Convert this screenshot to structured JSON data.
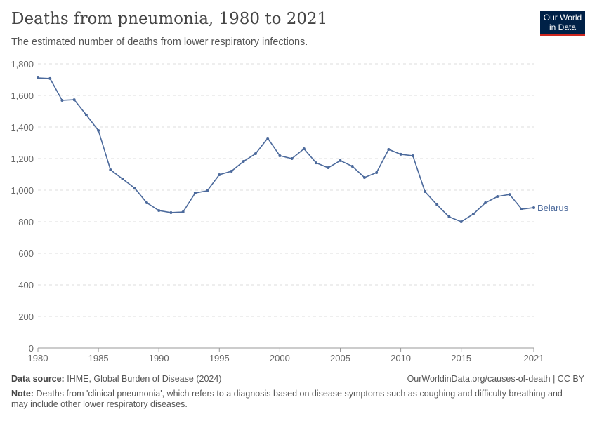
{
  "header": {
    "title": "Deaths from pneumonia, 1980 to 2021",
    "subtitle": "The estimated number of deaths from lower respiratory infections.",
    "logo": "Our World in Data"
  },
  "chart_data": {
    "type": "line",
    "title": "Deaths from pneumonia, 1980 to 2021",
    "subtitle": "The estimated number of deaths from lower respiratory infections.",
    "xlabel": "",
    "ylabel": "",
    "xlim": [
      1980,
      2021
    ],
    "ylim": [
      0,
      1800
    ],
    "x_ticks": [
      "1980",
      "1985",
      "1990",
      "1995",
      "2000",
      "2005",
      "2010",
      "2015",
      "2021"
    ],
    "y_ticks": [
      "0",
      "200",
      "400",
      "600",
      "800",
      "1,000",
      "1,200",
      "1,400",
      "1,600",
      "1,800"
    ],
    "grid": "horizontal dashed",
    "color": "#4c6a9c",
    "series": [
      {
        "name": "Belarus",
        "x": [
          1980,
          1981,
          1982,
          1983,
          1984,
          1985,
          1986,
          1987,
          1988,
          1989,
          1990,
          1991,
          1992,
          1993,
          1994,
          1995,
          1996,
          1997,
          1998,
          1999,
          2000,
          2001,
          2002,
          2003,
          2004,
          2005,
          2006,
          2007,
          2008,
          2009,
          2010,
          2011,
          2012,
          2013,
          2014,
          2015,
          2016,
          2017,
          2018,
          2019,
          2020,
          2021
        ],
        "values": [
          1711,
          1707,
          1569,
          1573,
          1476,
          1378,
          1129,
          1071,
          1013,
          920,
          871,
          858,
          862,
          982,
          996,
          1098,
          1120,
          1182,
          1231,
          1329,
          1218,
          1200,
          1262,
          1173,
          1142,
          1187,
          1151,
          1080,
          1111,
          1258,
          1227,
          1218,
          991,
          907,
          831,
          800,
          849,
          920,
          960,
          973,
          880,
          889
        ]
      }
    ]
  },
  "footer": {
    "source_label": "Data source:",
    "source": "IHME, Global Burden of Disease (2024)",
    "url": "OurWorldinData.org/causes-of-death | CC BY",
    "note_label": "Note:",
    "note": "Deaths from 'clinical pneumonia', which refers to a diagnosis based on disease symptoms such as coughing and difficulty breathing and may include other lower respiratory diseases."
  }
}
